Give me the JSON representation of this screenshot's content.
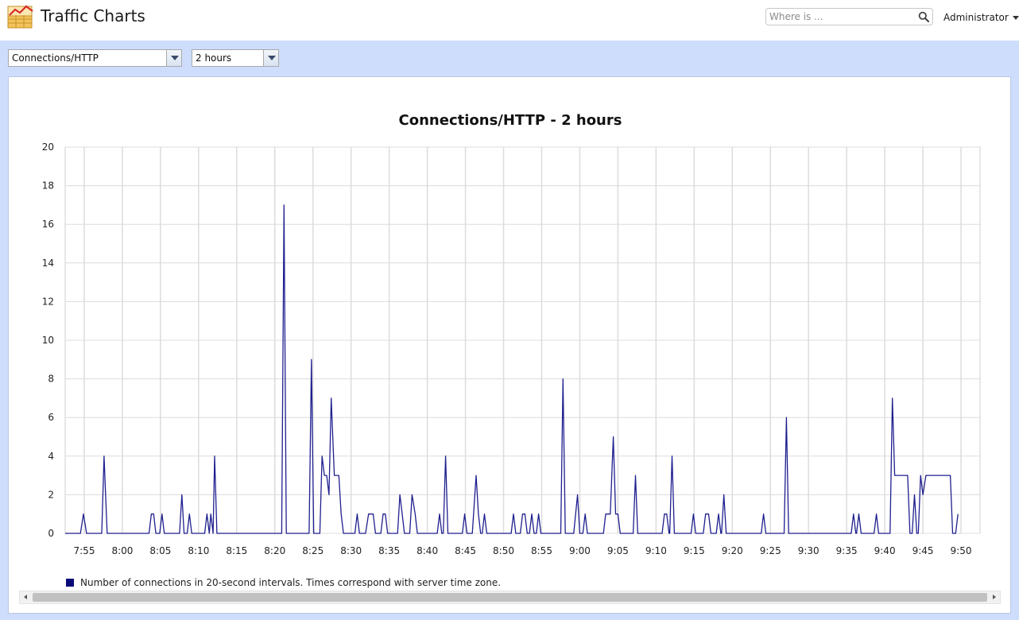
{
  "header": {
    "title": "Traffic Charts",
    "logo_icon": "line-chart-icon",
    "search": {
      "placeholder": "Where is ...",
      "value": "",
      "icon": "search-icon"
    },
    "user_menu": {
      "label": "Administrator",
      "icon": "caret-down-icon"
    }
  },
  "toolbar": {
    "metric_select": {
      "selected": "Connections/HTTP"
    },
    "range_select": {
      "selected": "2 hours"
    }
  },
  "legend": {
    "label": "Number of connections in 20-second intervals. Times correspond with server time zone.",
    "swatch_color": "#0a0a78"
  },
  "colors": {
    "toolbar_background": "#cdddfb",
    "series_line": "#1f1f8f",
    "grid": "#dcdcdc"
  },
  "chart_data": {
    "type": "line",
    "title": "Connections/HTTP - 2 hours",
    "xlabel": "",
    "ylabel": "",
    "ylim": [
      0,
      20
    ],
    "yticks": [
      0,
      2,
      4,
      6,
      8,
      10,
      12,
      14,
      16,
      18,
      20
    ],
    "x_range_minutes": [
      472.5,
      592.5
    ],
    "xticks": [
      {
        "label": "7:55",
        "minute": 475
      },
      {
        "label": "8:00",
        "minute": 480
      },
      {
        "label": "8:05",
        "minute": 485
      },
      {
        "label": "8:10",
        "minute": 490
      },
      {
        "label": "8:15",
        "minute": 495
      },
      {
        "label": "8:20",
        "minute": 500
      },
      {
        "label": "8:25",
        "minute": 505
      },
      {
        "label": "8:30",
        "minute": 510
      },
      {
        "label": "8:35",
        "minute": 515
      },
      {
        "label": "8:40",
        "minute": 520
      },
      {
        "label": "8:45",
        "minute": 525
      },
      {
        "label": "8:50",
        "minute": 530
      },
      {
        "label": "8:55",
        "minute": 535
      },
      {
        "label": "9:00",
        "minute": 540
      },
      {
        "label": "9:05",
        "minute": 545
      },
      {
        "label": "9:10",
        "minute": 550
      },
      {
        "label": "9:15",
        "minute": 555
      },
      {
        "label": "9:20",
        "minute": 560
      },
      {
        "label": "9:25",
        "minute": 565
      },
      {
        "label": "9:30",
        "minute": 570
      },
      {
        "label": "9:35",
        "minute": 575
      },
      {
        "label": "9:40",
        "minute": 580
      },
      {
        "label": "9:45",
        "minute": 585
      },
      {
        "label": "9:50",
        "minute": 590
      }
    ],
    "grid": true,
    "legend_position": "bottom-left",
    "series": [
      {
        "name": "Number of connections in 20-second intervals. Times correspond with server time zone.",
        "points": [
          [
            472.5,
            0
          ],
          [
            474.5,
            0
          ],
          [
            474.9,
            1
          ],
          [
            475.3,
            0
          ],
          [
            477.3,
            0
          ],
          [
            477.6,
            4
          ],
          [
            478.0,
            0
          ],
          [
            483.5,
            0
          ],
          [
            483.8,
            1
          ],
          [
            484.1,
            1
          ],
          [
            484.4,
            0
          ],
          [
            484.9,
            0
          ],
          [
            485.2,
            1
          ],
          [
            485.5,
            0
          ],
          [
            487.5,
            0
          ],
          [
            487.8,
            2
          ],
          [
            488.1,
            0
          ],
          [
            488.5,
            0
          ],
          [
            488.8,
            1
          ],
          [
            489.1,
            0
          ],
          [
            490.8,
            0
          ],
          [
            491.1,
            1
          ],
          [
            491.4,
            0
          ],
          [
            491.6,
            1
          ],
          [
            491.9,
            0
          ],
          [
            492.1,
            4
          ],
          [
            492.4,
            0
          ],
          [
            500.0,
            0
          ],
          [
            500.9,
            0
          ],
          [
            501.2,
            17
          ],
          [
            501.5,
            0
          ],
          [
            504.5,
            0
          ],
          [
            504.8,
            9
          ],
          [
            505.1,
            0
          ],
          [
            505.9,
            0
          ],
          [
            506.2,
            4
          ],
          [
            506.5,
            3
          ],
          [
            506.8,
            3
          ],
          [
            507.1,
            2
          ],
          [
            507.4,
            7
          ],
          [
            507.8,
            3
          ],
          [
            508.4,
            3
          ],
          [
            508.7,
            1
          ],
          [
            509.0,
            0
          ],
          [
            510.5,
            0
          ],
          [
            510.8,
            1
          ],
          [
            511.1,
            0
          ],
          [
            511.9,
            0
          ],
          [
            512.3,
            1
          ],
          [
            512.9,
            1
          ],
          [
            513.2,
            0
          ],
          [
            513.9,
            0
          ],
          [
            514.2,
            1
          ],
          [
            514.5,
            1
          ],
          [
            514.8,
            0
          ],
          [
            516.1,
            0
          ],
          [
            516.4,
            2
          ],
          [
            516.7,
            1
          ],
          [
            517.0,
            0
          ],
          [
            517.7,
            0
          ],
          [
            518.0,
            2
          ],
          [
            518.4,
            1
          ],
          [
            518.7,
            0
          ],
          [
            521.3,
            0
          ],
          [
            521.6,
            1
          ],
          [
            521.9,
            0
          ],
          [
            522.1,
            0
          ],
          [
            522.4,
            4
          ],
          [
            522.7,
            0
          ],
          [
            524.6,
            0
          ],
          [
            524.9,
            1
          ],
          [
            525.2,
            0
          ],
          [
            525.9,
            0
          ],
          [
            526.4,
            3
          ],
          [
            526.7,
            1
          ],
          [
            527.0,
            0
          ],
          [
            527.2,
            0
          ],
          [
            527.5,
            1
          ],
          [
            527.8,
            0
          ],
          [
            531.0,
            0
          ],
          [
            531.3,
            1
          ],
          [
            531.6,
            0
          ],
          [
            532.2,
            0
          ],
          [
            532.5,
            1
          ],
          [
            532.8,
            1
          ],
          [
            533.1,
            0
          ],
          [
            533.4,
            0
          ],
          [
            533.7,
            1
          ],
          [
            534.0,
            0
          ],
          [
            534.3,
            0
          ],
          [
            534.6,
            1
          ],
          [
            534.9,
            0
          ],
          [
            537.5,
            0
          ],
          [
            537.8,
            8
          ],
          [
            538.1,
            0
          ],
          [
            539.2,
            0
          ],
          [
            539.7,
            2
          ],
          [
            540.0,
            0
          ],
          [
            540.4,
            0
          ],
          [
            540.7,
            1
          ],
          [
            541.0,
            0
          ],
          [
            543.1,
            0
          ],
          [
            543.4,
            1
          ],
          [
            544.0,
            1
          ],
          [
            544.4,
            5
          ],
          [
            544.7,
            1
          ],
          [
            545.0,
            1
          ],
          [
            545.3,
            0
          ],
          [
            547.0,
            0
          ],
          [
            547.3,
            3
          ],
          [
            547.6,
            0
          ],
          [
            550.8,
            0
          ],
          [
            551.1,
            1
          ],
          [
            551.4,
            1
          ],
          [
            551.7,
            0
          ],
          [
            551.8,
            0
          ],
          [
            552.1,
            4
          ],
          [
            552.4,
            0
          ],
          [
            554.6,
            0
          ],
          [
            554.9,
            1
          ],
          [
            555.2,
            0
          ],
          [
            556.2,
            0
          ],
          [
            556.5,
            1
          ],
          [
            556.9,
            1
          ],
          [
            557.2,
            0
          ],
          [
            557.9,
            0
          ],
          [
            558.2,
            1
          ],
          [
            558.5,
            0
          ],
          [
            558.6,
            0
          ],
          [
            558.9,
            2
          ],
          [
            559.2,
            0
          ],
          [
            563.8,
            0
          ],
          [
            564.1,
            1
          ],
          [
            564.4,
            0
          ],
          [
            566.8,
            0
          ],
          [
            567.1,
            6
          ],
          [
            567.4,
            0
          ],
          [
            575.6,
            0
          ],
          [
            575.9,
            1
          ],
          [
            576.2,
            0
          ],
          [
            576.3,
            0
          ],
          [
            576.6,
            1
          ],
          [
            576.9,
            0
          ],
          [
            578.6,
            0
          ],
          [
            578.9,
            1
          ],
          [
            579.2,
            0
          ],
          [
            580.7,
            0
          ],
          [
            581.0,
            7
          ],
          [
            581.3,
            3
          ],
          [
            583.0,
            3
          ],
          [
            583.3,
            0
          ],
          [
            583.6,
            0
          ],
          [
            583.9,
            2
          ],
          [
            584.2,
            0
          ],
          [
            584.4,
            0
          ],
          [
            584.7,
            3
          ],
          [
            585.0,
            2
          ],
          [
            585.4,
            3
          ],
          [
            588.6,
            3
          ],
          [
            588.9,
            0
          ],
          [
            589.3,
            0
          ],
          [
            589.6,
            1
          ]
        ]
      }
    ]
  }
}
